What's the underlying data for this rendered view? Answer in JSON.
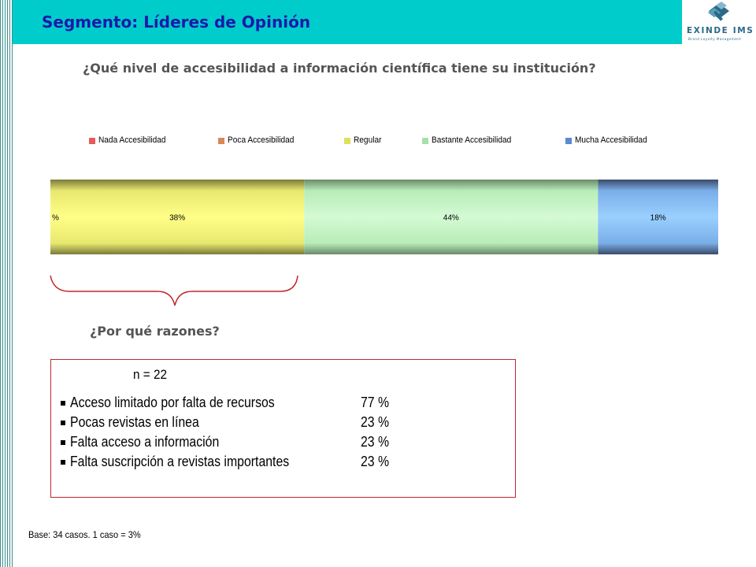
{
  "header": {
    "segment_title": "Segmento: Líderes de Opinión",
    "logo_text": "EXINDE IMS",
    "logo_subtext": "Brand Loyalty Management"
  },
  "question": "¿Qué nivel de accesibilidad a información científica tiene su institución?",
  "why_question": "¿Por qué razones?",
  "chart_data": {
    "type": "bar",
    "orientation": "horizontal-stacked-100",
    "categories": [
      ""
    ],
    "series": [
      {
        "name": "Nada Accesibilidad",
        "values": [
          0
        ],
        "label": "%",
        "color": "#e85a5a"
      },
      {
        "name": "Poca Accesibilidad",
        "values": [
          0
        ],
        "label": "",
        "color": "#d9875a"
      },
      {
        "name": "Regular",
        "values": [
          38
        ],
        "label": "38%",
        "color": "#f7f77a"
      },
      {
        "name": "Bastante Accesibilidad",
        "values": [
          44
        ],
        "label": "44%",
        "color": "#c4f5c4"
      },
      {
        "name": "Mucha Accesibilidad",
        "values": [
          18
        ],
        "label": "18%",
        "color": "#8fc6ff"
      }
    ],
    "xlim": [
      0,
      100
    ],
    "legend": "top",
    "grid": false
  },
  "reasons": {
    "n_label": "n = 22",
    "items": [
      {
        "label": "Acceso limitado por falta de  recursos",
        "value": "77 %"
      },
      {
        "label": "Pocas revistas en línea",
        "value": "23 %"
      },
      {
        "label": "Falta acceso a información",
        "value": "23 %"
      },
      {
        "label": "Falta suscripción a revistas importantes",
        "value": "23 %"
      }
    ]
  },
  "base_note": "Base: 34 casos. 1 caso = 3%",
  "colors": {
    "header_band": "#00cccc",
    "segment_title": "#1a1aa8",
    "box_border": "#c0272d",
    "question_text": "#555555"
  }
}
